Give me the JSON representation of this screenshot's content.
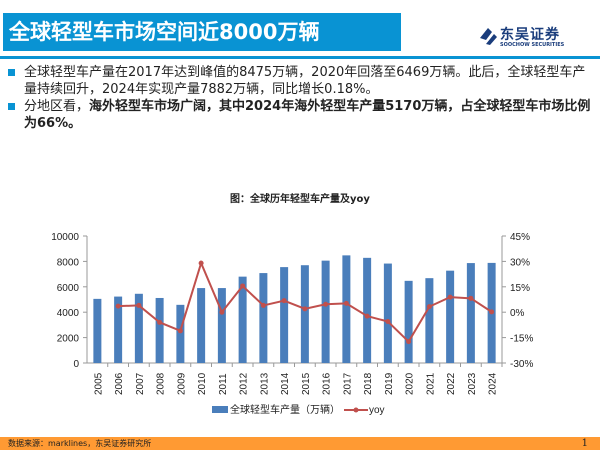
{
  "header": {
    "title": "全球轻型车市场空间近8000万辆",
    "logo_cn": "东吴证券",
    "logo_en": "SOOCHOW SECURITIES"
  },
  "bullets": [
    {
      "plain": "全球轻型车产量在2017年达到峰值的8475万辆，2020年回落至6469万辆。此后，全球轻型车产量持续回升，2024年实现产量7882万辆，同比增长0.18%。",
      "bold": ""
    },
    {
      "plain": "分地区看，",
      "bold": "海外轻型车市场广阔，其中2024年海外轻型车产量5170万辆，占全球轻型车市场比例为66%。"
    }
  ],
  "chart_title": "图：全球历年轻型车产量及yoy",
  "chart_data": {
    "type": "bar",
    "title": "图：全球历年轻型车产量及yoy",
    "categories": [
      "2005",
      "2006",
      "2007",
      "2008",
      "2009",
      "2010",
      "2011",
      "2012",
      "2013",
      "2014",
      "2015",
      "2016",
      "2017",
      "2018",
      "2019",
      "2020",
      "2021",
      "2022",
      "2023",
      "2024"
    ],
    "series": [
      {
        "name": "全球轻型车产量（万辆）",
        "type": "bar",
        "axis": "left",
        "color": "#4a7ebb",
        "values": [
          5050,
          5230,
          5450,
          5120,
          4580,
          5900,
          5900,
          6800,
          7080,
          7550,
          7700,
          8060,
          8475,
          8280,
          7830,
          6469,
          6680,
          7270,
          7868,
          7882
        ]
      },
      {
        "name": "yoy",
        "type": "line",
        "axis": "right",
        "color": "#c0504d",
        "values": [
          null,
          3.6,
          4.0,
          -6.0,
          -11.0,
          29.0,
          0.0,
          15.5,
          4.0,
          6.8,
          2.0,
          4.7,
          5.2,
          -2.3,
          -5.5,
          -17.4,
          3.3,
          8.9,
          8.2,
          0.18
        ]
      }
    ],
    "left_axis": {
      "ylim": [
        0,
        10000
      ],
      "ticks": [
        "0",
        "2000",
        "4000",
        "6000",
        "8000",
        "10000"
      ]
    },
    "right_axis": {
      "ylim": [
        -30,
        45
      ],
      "ticks": [
        "-30%",
        "-15%",
        "0%",
        "15%",
        "30%",
        "45%"
      ]
    },
    "legend": "bottom",
    "grid": false
  },
  "footer": {
    "source": "数据来源：marklines，东吴证券研究所",
    "page": "1"
  }
}
